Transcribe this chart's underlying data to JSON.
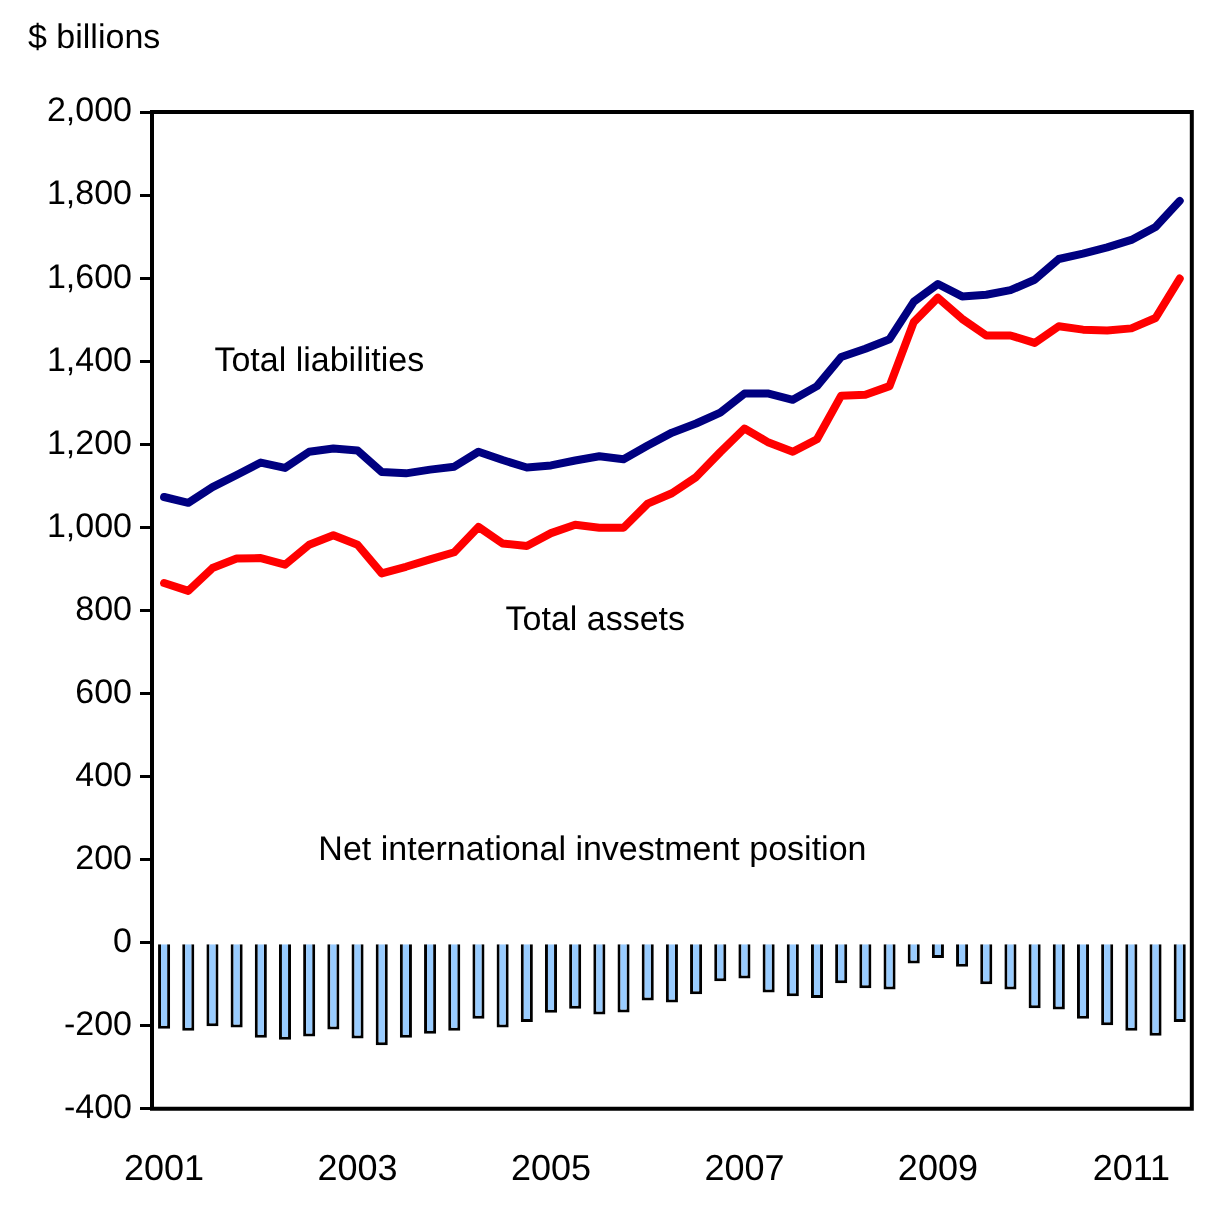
{
  "chart_data": {
    "type": "line",
    "ylabel": "$ billions",
    "categories": [
      "2001",
      null,
      null,
      null,
      null,
      null,
      null,
      null,
      "2003",
      null,
      null,
      null,
      null,
      null,
      null,
      null,
      "2005",
      null,
      null,
      null,
      null,
      null,
      null,
      null,
      "2007",
      null,
      null,
      null,
      null,
      null,
      null,
      null,
      "2009",
      null,
      null,
      null,
      null,
      null,
      null,
      null,
      "2011",
      null,
      null
    ],
    "series": [
      {
        "name": "Total liabilities",
        "color": "#000080",
        "values": [
          1073,
          1059,
          1097,
          1126,
          1156,
          1143,
          1182,
          1190,
          1185,
          1133,
          1130,
          1139,
          1146,
          1182,
          1162,
          1144,
          1149,
          1161,
          1171,
          1164,
          1197,
          1228,
          1250,
          1276,
          1322,
          1322,
          1307,
          1340,
          1410,
          1430,
          1453,
          1543,
          1586,
          1556,
          1560,
          1571,
          1596,
          1646,
          1659,
          1674,
          1692,
          1723,
          1786
        ]
      },
      {
        "name": "Total assets",
        "color": "#ff0000",
        "values": [
          866,
          847,
          902,
          925,
          926,
          910,
          958,
          981,
          958,
          889,
          905,
          923,
          940,
          1001,
          961,
          955,
          986,
          1006,
          999,
          999,
          1057,
          1082,
          1121,
          1181,
          1238,
          1204,
          1182,
          1212,
          1317,
          1319,
          1340,
          1494,
          1553,
          1502,
          1462,
          1462,
          1444,
          1484,
          1476,
          1474,
          1479,
          1504,
          1599
        ]
      },
      {
        "name": "Net international investment position",
        "type": "bar",
        "color": "#99ccff",
        "values": [
          -207,
          -212,
          -201,
          -204,
          -229,
          -234,
          -226,
          -209,
          -231,
          -247,
          -229,
          -219,
          -212,
          -183,
          -204,
          -191,
          -169,
          -159,
          -173,
          -168,
          -139,
          -144,
          -124,
          -93,
          -86,
          -120,
          -129,
          -133,
          -98,
          -110,
          -113,
          -50,
          -37,
          -58,
          -100,
          -113,
          -158,
          -161,
          -183,
          -199,
          -212,
          -224,
          -191
        ]
      }
    ],
    "ylim": [
      -400,
      2000
    ],
    "yticks": [
      -400,
      -200,
      0,
      200,
      400,
      600,
      800,
      {
        "value": 1000,
        "label": "1,000"
      },
      {
        "value": 1200,
        "label": "1,200"
      },
      {
        "value": 1400,
        "label": "1,400"
      },
      {
        "value": 1600,
        "label": "1,600"
      },
      {
        "value": 1800,
        "label": "1,800"
      },
      {
        "value": 2000,
        "label": "2,000"
      }
    ],
    "grid": false,
    "legend": false,
    "marker": "none",
    "line_style": "solid"
  }
}
